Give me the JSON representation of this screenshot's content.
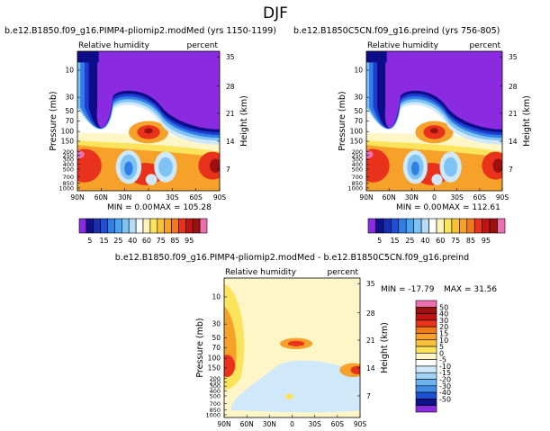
{
  "page_title": "DJF",
  "colors": {
    "violet": "#8a2be2",
    "navy": "#0d0d8a",
    "blue": "#1e3cd2",
    "mid_blue": "#2f7fe6",
    "light_blue": "#7ec3f3",
    "pale_blue": "#cfe9fb",
    "white": "#ffffff",
    "pale_yellow": "#fff6c8",
    "yellow": "#fbe45b",
    "orange": "#f6a12a",
    "red": "#e8321c",
    "dark_red": "#9c1010",
    "pink": "#ee6fb0"
  },
  "chart_data": [
    {
      "type": "contour",
      "title": "b.e12.B1850.f09_g16.PIMP4-pliomip2.modMed (yrs 1150-1199)",
      "variable": "Relative humidity",
      "units": "percent",
      "ylabel": "Pressure (mb)",
      "ylabel_right": "Height (km)",
      "x_ticks": [
        "90N",
        "60N",
        "30N",
        "0",
        "30S",
        "60S",
        "90S"
      ],
      "y_ticks": [
        "10",
        "30",
        "50",
        "70",
        "100",
        "150",
        "200",
        "250",
        "300",
        "400",
        "500",
        "700",
        "850",
        "1000"
      ],
      "height_ticks": [
        "35",
        "28",
        "21",
        "14",
        "7"
      ],
      "stats": {
        "min_label": "MIN =",
        "min": "0.00",
        "max_label": "MAX =",
        "max": "105.28"
      }
    },
    {
      "type": "contour",
      "title": "b.e12.B1850C5CN.f09_g16.preind (yrs 756-805)",
      "variable": "Relative humidity",
      "units": "percent",
      "ylabel": "Pressure (mb)",
      "ylabel_right": "Height (km)",
      "x_ticks": [
        "90N",
        "60N",
        "30N",
        "0",
        "30S",
        "60S",
        "90S"
      ],
      "y_ticks": [
        "10",
        "30",
        "50",
        "70",
        "100",
        "150",
        "200",
        "250",
        "300",
        "400",
        "500",
        "700",
        "850",
        "1000"
      ],
      "height_ticks": [
        "35",
        "28",
        "21",
        "14",
        "7"
      ],
      "stats": {
        "min_label": "MIN =",
        "min": "0.00",
        "max_label": "MAX =",
        "max": "112.61"
      }
    },
    {
      "type": "contour",
      "title": "b.e12.B1850.f09_g16.PIMP4-pliomip2.modMed - b.e12.B1850C5CN.f09_g16.preind",
      "variable": "Relative humidity",
      "units": "percent",
      "ylabel": "Pressure (mb)",
      "ylabel_right": "Height (km)",
      "x_ticks": [
        "90N",
        "60N",
        "30N",
        "0",
        "30S",
        "60S",
        "90S"
      ],
      "y_ticks": [
        "10",
        "30",
        "50",
        "70",
        "100",
        "150",
        "200",
        "250",
        "300",
        "400",
        "500",
        "700",
        "850",
        "1000"
      ],
      "height_ticks": [
        "35",
        "28",
        "21",
        "14",
        "7"
      ],
      "stats": {
        "min_label": "MIN =",
        "min": "-17.79",
        "max_label": "MAX =",
        "max": "31.56"
      }
    }
  ],
  "colorbar_abs": {
    "labels": [
      "5",
      "15",
      "25",
      "40",
      "60",
      "75",
      "85",
      "95"
    ],
    "colors": [
      "#8a2be2",
      "#10108a",
      "#1830b0",
      "#1e4fd6",
      "#2f7fe6",
      "#4aa3f0",
      "#7ec3f3",
      "#b6dcf8",
      "#ffffff",
      "#fff4b8",
      "#fbe45b",
      "#f8c13a",
      "#f6a12a",
      "#f07a1c",
      "#e8321c",
      "#c01414",
      "#9c1010",
      "#ee6fb0"
    ]
  },
  "colorbar_diff": {
    "labels": [
      "50",
      "40",
      "30",
      "20",
      "15",
      "10",
      "5",
      "0",
      "-5",
      "-10",
      "-15",
      "-20",
      "-30",
      "-40",
      "-50"
    ],
    "colors": [
      "#ee6fb0",
      "#9c1010",
      "#c01414",
      "#e8321c",
      "#f07a1c",
      "#f6a12a",
      "#f8c13a",
      "#fbe45b",
      "#fff6c8",
      "#ffffff",
      "#cfe9fb",
      "#9fd2f6",
      "#6cb4f0",
      "#3f8ae6",
      "#1e4fd6",
      "#10108a",
      "#8a2be2"
    ]
  }
}
